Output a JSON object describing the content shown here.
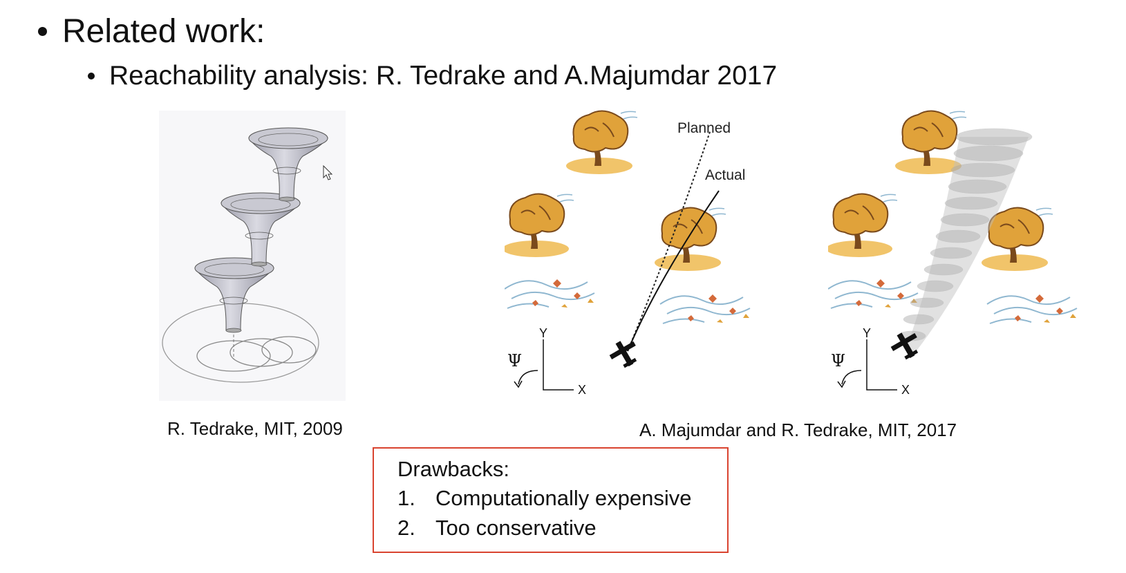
{
  "bullets": {
    "level1": "Related work:",
    "level2": "Reachability analysis: R. Tedrake and A.Majumdar 2017"
  },
  "figures": {
    "left_caption": "R. Tedrake, MIT, 2009",
    "right_caption": "A. Majumdar and R. Tedrake, MIT, 2017",
    "middle": {
      "planned_label": "Planned",
      "actual_label": "Actual",
      "x_label": "X",
      "y_label": "Y",
      "psi_label": "Ψ"
    },
    "right": {
      "x_label": "X",
      "y_label": "Y",
      "psi_label": "Ψ"
    }
  },
  "drawbacks": {
    "title": "Drawbacks:",
    "items": [
      {
        "num": "1.",
        "text": "Computationally expensive"
      },
      {
        "num": "2.",
        "text": "Too conservative"
      }
    ]
  },
  "colors": {
    "box_border": "#d9432f",
    "funnel": "#b9b9c4",
    "tree_foliage": "#e0a23a",
    "tree_trunk": "#7a4a1c",
    "wind": "#8fb7d0"
  }
}
